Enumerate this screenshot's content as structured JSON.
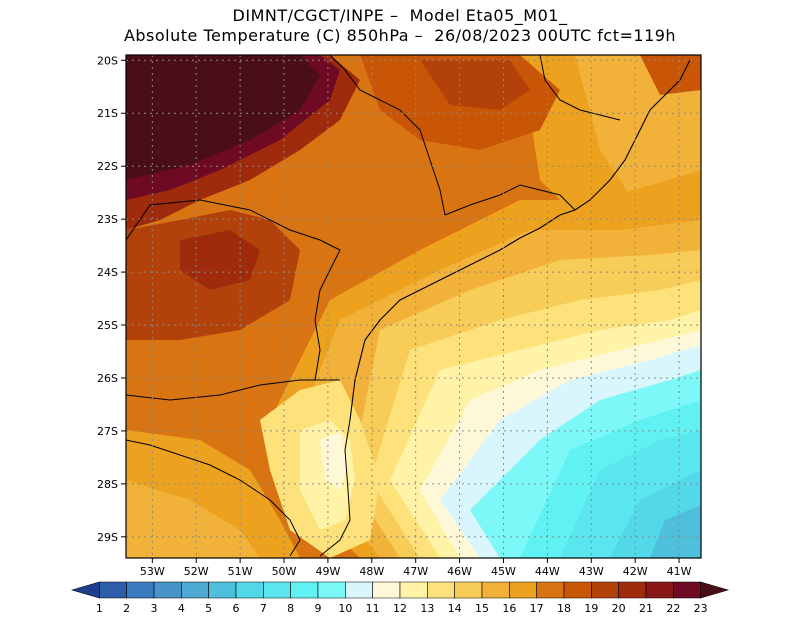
{
  "title": {
    "line1": "DIMNT/CGCT/INPE –  Model Eta05_M01_",
    "line2": "Absolute Temperature (C) 850hPa –  26/08/2023 00UTC fct=119h"
  },
  "axes": {
    "lat_labels": [
      "20S",
      "21S",
      "22S",
      "23S",
      "24S",
      "25S",
      "26S",
      "27S",
      "28S",
      "29S"
    ],
    "lon_labels": [
      "53W",
      "52W",
      "51W",
      "50W",
      "49W",
      "48W",
      "47W",
      "46W",
      "45W",
      "44W",
      "43W",
      "42W",
      "41W"
    ],
    "lat_values": [
      -20,
      -21,
      -22,
      -23,
      -24,
      -25,
      -26,
      -27,
      -28,
      -29
    ],
    "lon_values": [
      -53,
      -52,
      -51,
      -50,
      -49,
      -48,
      -47,
      -46,
      -45,
      -44,
      -43,
      -42,
      -41
    ],
    "lat_range": [
      -29.4,
      -19.9
    ],
    "lon_range": [
      -53.6,
      -40.5
    ]
  },
  "colorbar": {
    "labels": [
      "1",
      "2",
      "3",
      "4",
      "5",
      "6",
      "7",
      "8",
      "9",
      "10",
      "11",
      "12",
      "13",
      "14",
      "15",
      "16",
      "17",
      "18",
      "19",
      "20",
      "21",
      "22",
      "23"
    ],
    "colors": [
      "#1e3f8f",
      "#2c5da8",
      "#3a7bbf",
      "#4694c8",
      "#4eaad3",
      "#4fc0dc",
      "#52d8e8",
      "#5ae6ee",
      "#60f2f2",
      "#7cf8f8",
      "#d8f6fb",
      "#fff8d8",
      "#fff3a8",
      "#fde27c",
      "#f8cc58",
      "#f2b23a",
      "#eca21e",
      "#d97412",
      "#c95606",
      "#b2410a",
      "#a02a0c",
      "#8a1818",
      "#6e0a24",
      "#4a0e18"
    ]
  },
  "map_legend": {
    "region": "Southern/Southeastern Brazil, 850hPa temperature field"
  }
}
